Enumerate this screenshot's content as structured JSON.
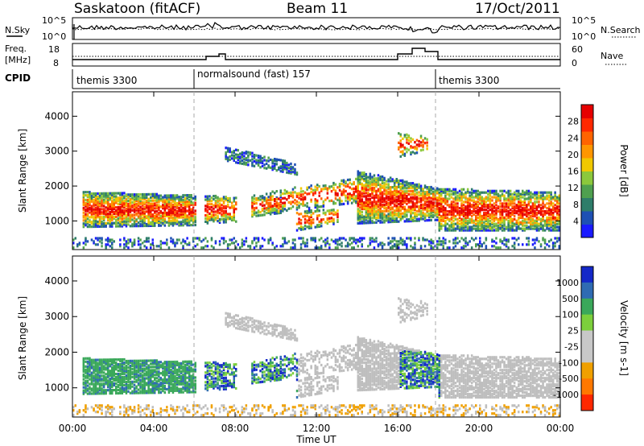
{
  "header": {
    "station": "Saskatoon (fitACF)",
    "beam": "Beam 11",
    "date": "17/Oct/2011"
  },
  "noise_panel": {
    "left_label": "N.Sky",
    "right_label": "N.Search",
    "left_ticks": [
      "10^5",
      "10^0"
    ],
    "right_ticks": [
      "10^5",
      "10^0"
    ]
  },
  "freq_panel": {
    "left_label_line1": "Freq.",
    "left_label_line2": "[MHz]",
    "right_label": "Nave",
    "left_ticks": [
      "18",
      "8"
    ],
    "right_ticks": [
      "60",
      "0"
    ]
  },
  "cpid_panel": {
    "label": "CPID",
    "segments": [
      {
        "text": "themis 3300",
        "start_hour": 0
      },
      {
        "text": "normalsound (fast) 157",
        "start_hour": 6
      },
      {
        "text": "themis 3300",
        "start_hour": 18
      }
    ]
  },
  "colors": {
    "power": [
      "#1a1aff",
      "#1e50b4",
      "#2e7d6a",
      "#4fa04f",
      "#8cc83c",
      "#f0c800",
      "#ff9600",
      "#ff6400",
      "#ff2800",
      "#e60000"
    ],
    "velocity": [
      "#1428c8",
      "#2f6bb3",
      "#3aa85a",
      "#7ccf3c",
      "#c8c8c8",
      "#c8c8c8",
      "#f0a000",
      "#ff7800",
      "#ff2800"
    ],
    "ground_scatter": "#bebebe"
  },
  "chart_data": [
    {
      "type": "heatmap",
      "title": "Power",
      "ylabel": "Slant Range [km]",
      "xlabel": "Time UT",
      "x_ticks": [
        "00:00",
        "04:00",
        "08:00",
        "12:00",
        "16:00",
        "20:00",
        "00:00"
      ],
      "xlim_hours": [
        0,
        24
      ],
      "y_ticks": [
        "1000",
        "2000",
        "3000",
        "4000"
      ],
      "ylim_km": [
        180,
        4700
      ],
      "colorbar": {
        "label": "Power [dB]",
        "ticks": [
          "4",
          "8",
          "12",
          "16",
          "20",
          "24",
          "28"
        ],
        "range": [
          0,
          32
        ]
      },
      "mode_change_hours": [
        6,
        18
      ]
    },
    {
      "type": "heatmap",
      "title": "Velocity",
      "ylabel": "Slant Range [km]",
      "xlabel": "Time UT",
      "x_ticks": [
        "00:00",
        "04:00",
        "08:00",
        "12:00",
        "16:00",
        "20:00",
        "00:00"
      ],
      "xlim_hours": [
        0,
        24
      ],
      "y_ticks": [
        "1000",
        "2000",
        "3000",
        "4000"
      ],
      "ylim_km": [
        180,
        4700
      ],
      "colorbar": {
        "label": "Velocity [m s-1]",
        "ticks": [
          "1000",
          "500",
          "100",
          "25",
          "-25",
          "-100",
          "-500",
          "-1000"
        ]
      },
      "mode_change_hours": [
        6,
        18
      ]
    }
  ]
}
